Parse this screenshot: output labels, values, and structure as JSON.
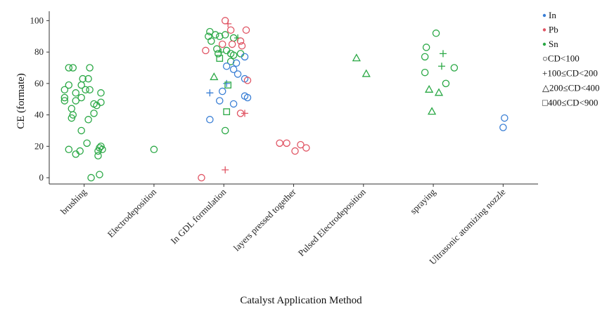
{
  "chart_data": {
    "type": "scatter",
    "title": "",
    "xlabel": "Catalyst Application Method",
    "ylabel": "CE (formate)",
    "categories": [
      "brushing",
      "Electrodeposition",
      "In GDL formulation",
      "layers pressed together",
      "Pulsed Electrodeposition",
      "spraying",
      "Ultrasonic atomizing nozzle"
    ],
    "ylim": [
      -4,
      106
    ],
    "yticks": [
      0,
      20,
      40,
      60,
      80,
      100
    ],
    "grid": false,
    "legend_position": "right",
    "color_legend": [
      {
        "name": "In",
        "color": "#3a7fd5"
      },
      {
        "name": "Pb",
        "color": "#e05564"
      },
      {
        "name": "Sn",
        "color": "#2aa845"
      }
    ],
    "shape_legend": [
      {
        "name": "CD<100",
        "shape": "circle",
        "glyph": "○"
      },
      {
        "name": "100≤CD<200",
        "shape": "plus",
        "glyph": "+"
      },
      {
        "name": "200≤CD<400",
        "shape": "triangle",
        "glyph": "△"
      },
      {
        "name": "400≤CD<900",
        "shape": "square",
        "glyph": "□"
      }
    ],
    "points": [
      {
        "cat": 0,
        "j": -0.22,
        "y": 70,
        "metal": "Sn",
        "cd": "CD<100"
      },
      {
        "cat": 0,
        "j": -0.16,
        "y": 70,
        "metal": "Sn",
        "cd": "CD<100"
      },
      {
        "cat": 0,
        "j": 0.08,
        "y": 70,
        "metal": "Sn",
        "cd": "CD<100"
      },
      {
        "cat": 0,
        "j": -0.02,
        "y": 63,
        "metal": "Sn",
        "cd": "CD<100"
      },
      {
        "cat": 0,
        "j": 0.06,
        "y": 63,
        "metal": "Sn",
        "cd": "CD<100"
      },
      {
        "cat": 0,
        "j": -0.22,
        "y": 59,
        "metal": "Sn",
        "cd": "CD<100"
      },
      {
        "cat": 0,
        "j": -0.04,
        "y": 59,
        "metal": "Sn",
        "cd": "CD<100"
      },
      {
        "cat": 0,
        "j": -0.28,
        "y": 56,
        "metal": "Sn",
        "cd": "CD<100"
      },
      {
        "cat": 0,
        "j": 0.02,
        "y": 56,
        "metal": "Sn",
        "cd": "CD<100"
      },
      {
        "cat": 0,
        "j": 0.08,
        "y": 56,
        "metal": "Sn",
        "cd": "CD<100"
      },
      {
        "cat": 0,
        "j": -0.12,
        "y": 54,
        "metal": "Sn",
        "cd": "CD<100"
      },
      {
        "cat": 0,
        "j": 0.24,
        "y": 54,
        "metal": "Sn",
        "cd": "CD<100"
      },
      {
        "cat": 0,
        "j": -0.28,
        "y": 51,
        "metal": "Sn",
        "cd": "CD<100"
      },
      {
        "cat": 0,
        "j": -0.04,
        "y": 51,
        "metal": "Sn",
        "cd": "CD<100"
      },
      {
        "cat": 0,
        "j": -0.28,
        "y": 49,
        "metal": "Sn",
        "cd": "CD<100"
      },
      {
        "cat": 0,
        "j": -0.12,
        "y": 49,
        "metal": "Sn",
        "cd": "CD<100"
      },
      {
        "cat": 0,
        "j": 0.24,
        "y": 48,
        "metal": "Sn",
        "cd": "CD<100"
      },
      {
        "cat": 0,
        "j": 0.14,
        "y": 47,
        "metal": "Sn",
        "cd": "CD<100"
      },
      {
        "cat": 0,
        "j": 0.18,
        "y": 46,
        "metal": "Sn",
        "cd": "CD<100"
      },
      {
        "cat": 0,
        "j": -0.18,
        "y": 44,
        "metal": "Sn",
        "cd": "CD<100"
      },
      {
        "cat": 0,
        "j": 0.14,
        "y": 41,
        "metal": "Sn",
        "cd": "CD<100"
      },
      {
        "cat": 0,
        "j": -0.16,
        "y": 40,
        "metal": "Sn",
        "cd": "CD<100"
      },
      {
        "cat": 0,
        "j": -0.18,
        "y": 38,
        "metal": "Sn",
        "cd": "CD<100"
      },
      {
        "cat": 0,
        "j": 0.06,
        "y": 37,
        "metal": "Sn",
        "cd": "CD<100"
      },
      {
        "cat": 0,
        "j": -0.04,
        "y": 30,
        "metal": "Sn",
        "cd": "CD<100"
      },
      {
        "cat": 0,
        "j": 0.04,
        "y": 22,
        "metal": "Sn",
        "cd": "CD<100"
      },
      {
        "cat": 0,
        "j": 0.24,
        "y": 20,
        "metal": "Sn",
        "cd": "CD<100"
      },
      {
        "cat": 0,
        "j": 0.22,
        "y": 19,
        "metal": "Sn",
        "cd": "CD<100"
      },
      {
        "cat": 0,
        "j": -0.22,
        "y": 18,
        "metal": "Sn",
        "cd": "CD<100"
      },
      {
        "cat": 0,
        "j": 0.26,
        "y": 18,
        "metal": "Sn",
        "cd": "CD<100"
      },
      {
        "cat": 0,
        "j": -0.06,
        "y": 17,
        "metal": "Sn",
        "cd": "CD<100"
      },
      {
        "cat": 0,
        "j": 0.2,
        "y": 17,
        "metal": "Sn",
        "cd": "CD<100"
      },
      {
        "cat": 0,
        "j": -0.12,
        "y": 15,
        "metal": "Sn",
        "cd": "CD<100"
      },
      {
        "cat": 0,
        "j": 0.2,
        "y": 14,
        "metal": "Sn",
        "cd": "CD<100"
      },
      {
        "cat": 0,
        "j": 0.22,
        "y": 2,
        "metal": "Sn",
        "cd": "CD<100"
      },
      {
        "cat": 0,
        "j": 0.1,
        "y": 0,
        "metal": "Sn",
        "cd": "CD<100"
      },
      {
        "cat": 1,
        "j": 0,
        "y": 18,
        "metal": "Sn",
        "cd": "CD<100"
      },
      {
        "cat": 2,
        "j": 0.02,
        "y": 100,
        "metal": "Pb",
        "cd": "CD<100"
      },
      {
        "cat": 2,
        "j": 0.06,
        "y": 98,
        "metal": "Pb",
        "cd": "100≤CD<200"
      },
      {
        "cat": 2,
        "j": 0.1,
        "y": 94,
        "metal": "Pb",
        "cd": "CD<100"
      },
      {
        "cat": 2,
        "j": 0.32,
        "y": 94,
        "metal": "Pb",
        "cd": "CD<100"
      },
      {
        "cat": 2,
        "j": -0.2,
        "y": 93,
        "metal": "Sn",
        "cd": "CD<100"
      },
      {
        "cat": 2,
        "j": -0.12,
        "y": 91,
        "metal": "Sn",
        "cd": "CD<100"
      },
      {
        "cat": 2,
        "j": -0.06,
        "y": 90,
        "metal": "Sn",
        "cd": "CD<100"
      },
      {
        "cat": 2,
        "j": -0.22,
        "y": 90,
        "metal": "Sn",
        "cd": "CD<100"
      },
      {
        "cat": 2,
        "j": 0.02,
        "y": 91,
        "metal": "Sn",
        "cd": "CD<100"
      },
      {
        "cat": 2,
        "j": 0.14,
        "y": 89,
        "metal": "Sn",
        "cd": "CD<100"
      },
      {
        "cat": 2,
        "j": 0.2,
        "y": 89,
        "metal": "Sn",
        "cd": "100≤CD<200"
      },
      {
        "cat": 2,
        "j": 0.24,
        "y": 87,
        "metal": "Pb",
        "cd": "CD<100"
      },
      {
        "cat": 2,
        "j": -0.18,
        "y": 87,
        "metal": "Sn",
        "cd": "CD<100"
      },
      {
        "cat": 2,
        "j": -0.02,
        "y": 85,
        "metal": "Pb",
        "cd": "CD<100"
      },
      {
        "cat": 2,
        "j": 0.12,
        "y": 85,
        "metal": "Pb",
        "cd": "CD<100"
      },
      {
        "cat": 2,
        "j": 0.26,
        "y": 84,
        "metal": "Pb",
        "cd": "CD<100"
      },
      {
        "cat": 2,
        "j": -0.26,
        "y": 81,
        "metal": "Pb",
        "cd": "CD<100"
      },
      {
        "cat": 2,
        "j": -0.1,
        "y": 82,
        "metal": "Sn",
        "cd": "CD<100"
      },
      {
        "cat": 2,
        "j": -0.04,
        "y": 80,
        "metal": "Sn",
        "cd": "100≤CD<200"
      },
      {
        "cat": 2,
        "j": 0.04,
        "y": 81,
        "metal": "Sn",
        "cd": "CD<100"
      },
      {
        "cat": 2,
        "j": -0.08,
        "y": 79,
        "metal": "Sn",
        "cd": "CD<100"
      },
      {
        "cat": 2,
        "j": 0.1,
        "y": 79,
        "metal": "Sn",
        "cd": "CD<100"
      },
      {
        "cat": 2,
        "j": 0.24,
        "y": 79,
        "metal": "Sn",
        "cd": "CD<100"
      },
      {
        "cat": 2,
        "j": 0.14,
        "y": 78,
        "metal": "Sn",
        "cd": "CD<100"
      },
      {
        "cat": 2,
        "j": 0.3,
        "y": 77,
        "metal": "In",
        "cd": "CD<100"
      },
      {
        "cat": 2,
        "j": -0.06,
        "y": 76,
        "metal": "Sn",
        "cd": "400≤CD<900"
      },
      {
        "cat": 2,
        "j": 0.1,
        "y": 74,
        "metal": "Sn",
        "cd": "CD<100"
      },
      {
        "cat": 2,
        "j": 0.18,
        "y": 73,
        "metal": "In",
        "cd": "CD<100"
      },
      {
        "cat": 2,
        "j": 0.04,
        "y": 71,
        "metal": "In",
        "cd": "CD<100"
      },
      {
        "cat": 2,
        "j": 0.14,
        "y": 69,
        "metal": "In",
        "cd": "CD<100"
      },
      {
        "cat": 2,
        "j": 0.2,
        "y": 66,
        "metal": "In",
        "cd": "CD<100"
      },
      {
        "cat": 2,
        "j": -0.14,
        "y": 64,
        "metal": "Sn",
        "cd": "200≤CD<400"
      },
      {
        "cat": 2,
        "j": 0.3,
        "y": 63,
        "metal": "In",
        "cd": "CD<100"
      },
      {
        "cat": 2,
        "j": 0.34,
        "y": 62,
        "metal": "Pb",
        "cd": "CD<100"
      },
      {
        "cat": 2,
        "j": 0.04,
        "y": 60,
        "metal": "In",
        "cd": "100≤CD<200"
      },
      {
        "cat": 2,
        "j": 0.06,
        "y": 59,
        "metal": "Sn",
        "cd": "400≤CD<900"
      },
      {
        "cat": 2,
        "j": -0.2,
        "y": 54,
        "metal": "In",
        "cd": "100≤CD<200"
      },
      {
        "cat": 2,
        "j": -0.02,
        "y": 55,
        "metal": "In",
        "cd": "CD<100"
      },
      {
        "cat": 2,
        "j": 0.3,
        "y": 52,
        "metal": "In",
        "cd": "CD<100"
      },
      {
        "cat": 2,
        "j": 0.34,
        "y": 51,
        "metal": "In",
        "cd": "CD<100"
      },
      {
        "cat": 2,
        "j": -0.06,
        "y": 49,
        "metal": "In",
        "cd": "CD<100"
      },
      {
        "cat": 2,
        "j": 0.14,
        "y": 47,
        "metal": "In",
        "cd": "CD<100"
      },
      {
        "cat": 2,
        "j": 0.04,
        "y": 42,
        "metal": "Sn",
        "cd": "400≤CD<900"
      },
      {
        "cat": 2,
        "j": 0.24,
        "y": 41,
        "metal": "Pb",
        "cd": "CD<100"
      },
      {
        "cat": 2,
        "j": 0.3,
        "y": 41,
        "metal": "Pb",
        "cd": "100≤CD<200"
      },
      {
        "cat": 2,
        "j": -0.2,
        "y": 37,
        "metal": "In",
        "cd": "CD<100"
      },
      {
        "cat": 2,
        "j": 0.02,
        "y": 30,
        "metal": "Sn",
        "cd": "CD<100"
      },
      {
        "cat": 2,
        "j": 0.02,
        "y": 5,
        "metal": "Pb",
        "cd": "100≤CD<200"
      },
      {
        "cat": 2,
        "j": -0.32,
        "y": 0,
        "metal": "Pb",
        "cd": "CD<100"
      },
      {
        "cat": 3,
        "j": -0.2,
        "y": 22,
        "metal": "Pb",
        "cd": "CD<100"
      },
      {
        "cat": 3,
        "j": -0.1,
        "y": 22,
        "metal": "Pb",
        "cd": "CD<100"
      },
      {
        "cat": 3,
        "j": 0.1,
        "y": 21,
        "metal": "Pb",
        "cd": "CD<100"
      },
      {
        "cat": 3,
        "j": 0.18,
        "y": 19,
        "metal": "Pb",
        "cd": "CD<100"
      },
      {
        "cat": 3,
        "j": 0.02,
        "y": 17,
        "metal": "Pb",
        "cd": "CD<100"
      },
      {
        "cat": 4,
        "j": -0.1,
        "y": 76,
        "metal": "Sn",
        "cd": "200≤CD<400"
      },
      {
        "cat": 4,
        "j": 0.04,
        "y": 66,
        "metal": "Sn",
        "cd": "200≤CD<400"
      },
      {
        "cat": 5,
        "j": 0.04,
        "y": 92,
        "metal": "Sn",
        "cd": "CD<100"
      },
      {
        "cat": 5,
        "j": -0.1,
        "y": 83,
        "metal": "Sn",
        "cd": "CD<100"
      },
      {
        "cat": 5,
        "j": 0.14,
        "y": 79,
        "metal": "Sn",
        "cd": "100≤CD<200"
      },
      {
        "cat": 5,
        "j": -0.12,
        "y": 77,
        "metal": "Sn",
        "cd": "CD<100"
      },
      {
        "cat": 5,
        "j": 0.12,
        "y": 71,
        "metal": "Sn",
        "cd": "100≤CD<200"
      },
      {
        "cat": 5,
        "j": 0.3,
        "y": 70,
        "metal": "Sn",
        "cd": "CD<100"
      },
      {
        "cat": 5,
        "j": -0.12,
        "y": 67,
        "metal": "Sn",
        "cd": "CD<100"
      },
      {
        "cat": 5,
        "j": 0.18,
        "y": 60,
        "metal": "Sn",
        "cd": "CD<100"
      },
      {
        "cat": 5,
        "j": -0.06,
        "y": 56,
        "metal": "Sn",
        "cd": "200≤CD<400"
      },
      {
        "cat": 5,
        "j": 0.08,
        "y": 54,
        "metal": "Sn",
        "cd": "200≤CD<400"
      },
      {
        "cat": 5,
        "j": -0.02,
        "y": 42,
        "metal": "Sn",
        "cd": "200≤CD<400"
      },
      {
        "cat": 6,
        "j": 0.02,
        "y": 38,
        "metal": "In",
        "cd": "CD<100"
      },
      {
        "cat": 6,
        "j": 0.0,
        "y": 32,
        "metal": "In",
        "cd": "CD<100"
      }
    ]
  }
}
